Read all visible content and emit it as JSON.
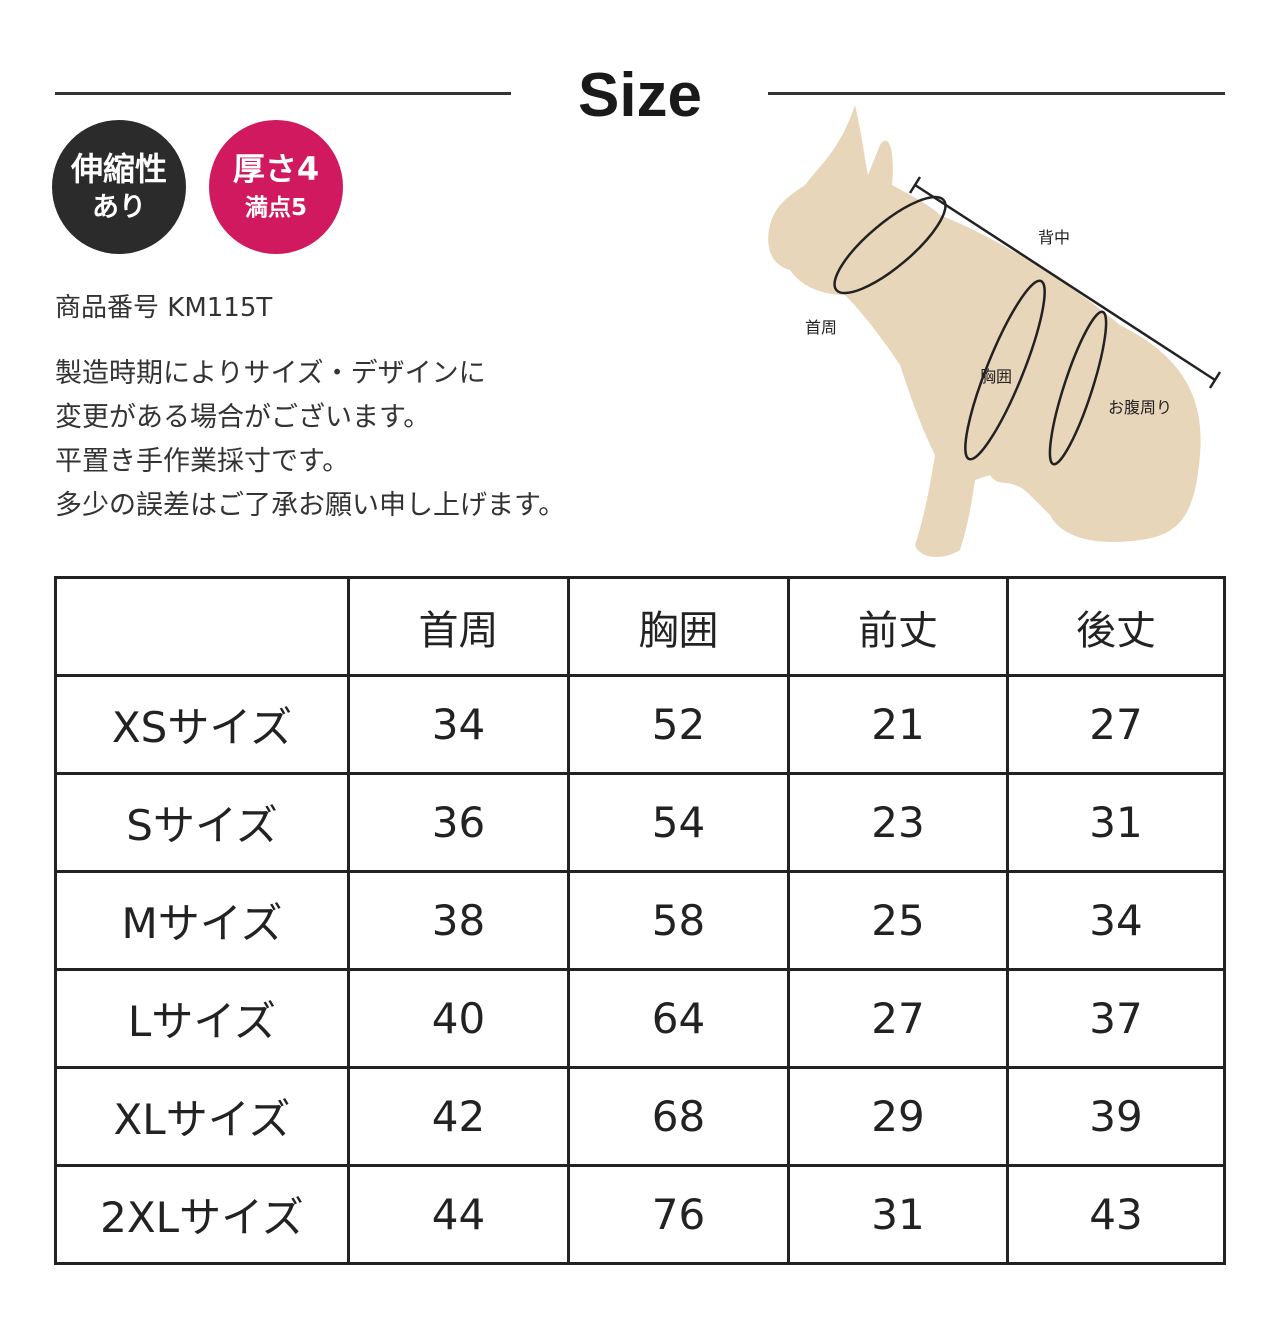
{
  "title": "Size",
  "badges": [
    {
      "line1": "伸縮性",
      "line2": "あり",
      "color": "#2b2b2b"
    },
    {
      "line1": "厚さ4",
      "line2": "満点5",
      "color": "#d0195e"
    }
  ],
  "product_code": "商品番号 KM115T",
  "notes": [
    "製造時期によりサイズ・デザインに",
    "変更がある場合がございます。",
    "平置き手作業採寸です。",
    "多少の誤差はご了承お願い申し上げます。"
  ],
  "diagram_labels": {
    "back": "背中",
    "neck": "首周",
    "chest": "胸囲",
    "belly": "お腹周り"
  },
  "table": {
    "headers": [
      "",
      "首周",
      "胸囲",
      "前丈",
      "後丈"
    ],
    "rows": [
      [
        "XSサイズ",
        "34",
        "52",
        "21",
        "27"
      ],
      [
        "Sサイズ",
        "36",
        "54",
        "23",
        "31"
      ],
      [
        "Mサイズ",
        "38",
        "58",
        "25",
        "34"
      ],
      [
        "Lサイズ",
        "40",
        "64",
        "27",
        "37"
      ],
      [
        "XLサイズ",
        "42",
        "68",
        "29",
        "39"
      ],
      [
        "2XLサイズ",
        "44",
        "76",
        "31",
        "43"
      ]
    ]
  }
}
